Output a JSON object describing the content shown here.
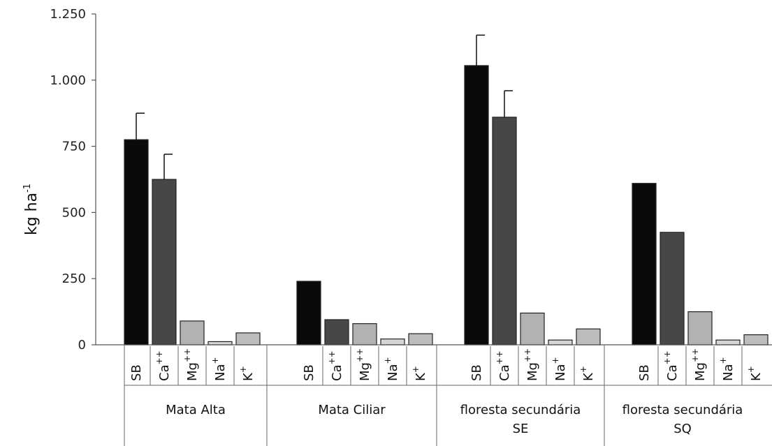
{
  "chart_data": {
    "type": "bar",
    "ylabel": "kg ha",
    "ylabel_sup": "-1",
    "ylim": [
      0,
      1250
    ],
    "yticks": [
      0,
      250,
      500,
      750,
      1000,
      1250
    ],
    "ytick_labels": [
      "0",
      "250",
      "500",
      "750",
      "1.000",
      "1.250"
    ],
    "ions": [
      {
        "key": "SB",
        "label": "SB",
        "sup": "",
        "color": "#0a0a0a"
      },
      {
        "key": "Ca",
        "label": "Ca",
        "sup": "++",
        "color": "#474747"
      },
      {
        "key": "Mg",
        "label": "Mg",
        "sup": "++",
        "color": "#b2b2b2"
      },
      {
        "key": "Na",
        "label": "Na",
        "sup": "+",
        "color": "#d6d6d6"
      },
      {
        "key": "K",
        "label": "K",
        "sup": "+",
        "color": "#bdbdbd"
      }
    ],
    "groups": [
      {
        "label_lines": [
          "Mata Alta"
        ],
        "values": [
          775,
          625,
          90,
          12,
          45
        ],
        "errors": [
          100,
          95,
          0,
          0,
          0
        ]
      },
      {
        "label_lines": [
          "Mata Ciliar"
        ],
        "values": [
          240,
          95,
          80,
          22,
          42
        ],
        "errors": [
          0,
          0,
          0,
          0,
          0
        ]
      },
      {
        "label_lines": [
          "floresta secundária",
          "SE"
        ],
        "values": [
          1055,
          860,
          120,
          18,
          60
        ],
        "errors": [
          115,
          100,
          0,
          0,
          0
        ]
      },
      {
        "label_lines": [
          "floresta secundária",
          "SQ"
        ],
        "values": [
          610,
          425,
          125,
          18,
          38
        ],
        "errors": [
          0,
          0,
          0,
          0,
          0
        ]
      }
    ]
  }
}
